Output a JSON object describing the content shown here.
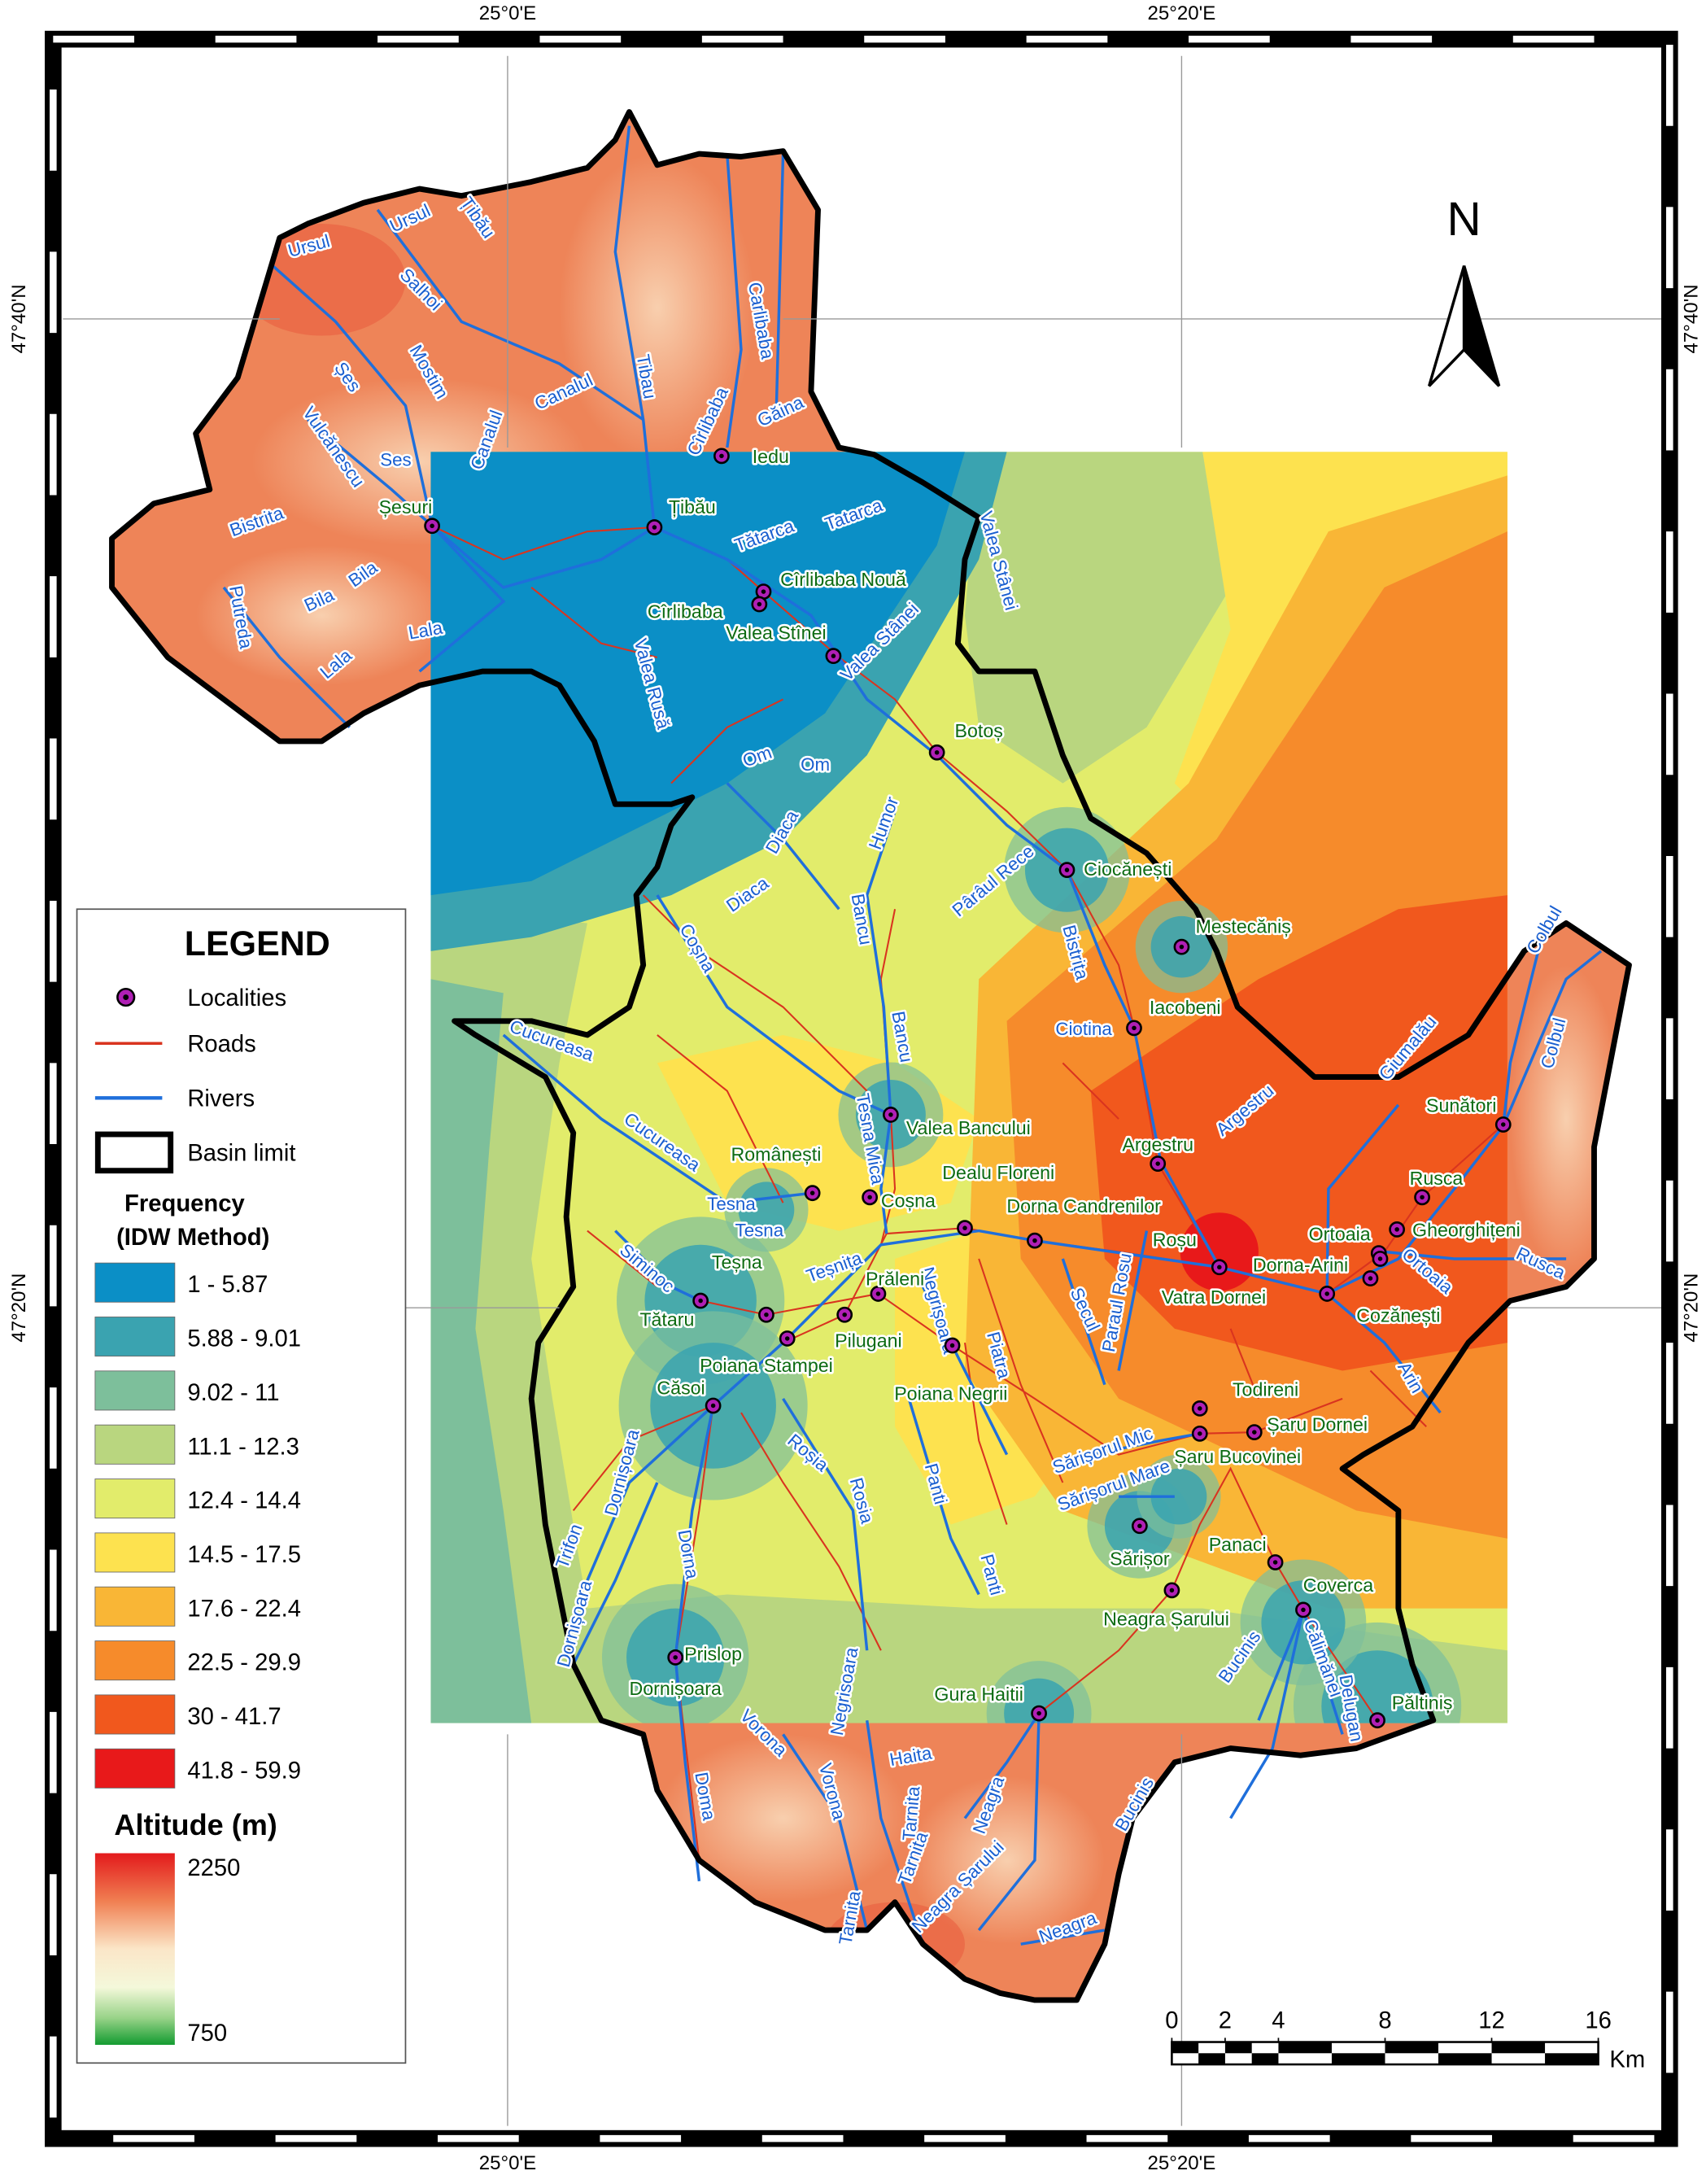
{
  "coordinates": {
    "top": [
      "25°0'E",
      "25°20'E"
    ],
    "bottom": [
      "25°0'E",
      "25°20'E"
    ],
    "left": [
      "47°40'N",
      "47°20'N"
    ],
    "right": [
      "47°40'N",
      "47°20'N"
    ]
  },
  "north": "N",
  "legend": {
    "title": "LEGEND",
    "items": [
      "Localities",
      "Roads",
      "Rivers",
      "Basin limit"
    ],
    "frequency_title": [
      "Frequency",
      "(IDW Method)"
    ],
    "frequency_classes": [
      {
        "label": "1 - 5.87",
        "color": "#0b8fc6"
      },
      {
        "label": "5.88 - 9.01",
        "color": "#3aa3b0"
      },
      {
        "label": "9.02 - 11",
        "color": "#7dbf9b"
      },
      {
        "label": "11.1 - 12.3",
        "color": "#b9d67f"
      },
      {
        "label": "12.4 - 14.4",
        "color": "#e2ec6b"
      },
      {
        "label": "14.5 - 17.5",
        "color": "#fde24f"
      },
      {
        "label": "17.6 - 22.4",
        "color": "#f9b636"
      },
      {
        "label": "22.5 - 29.9",
        "color": "#f68b2b"
      },
      {
        "label": "30 - 41.7",
        "color": "#f1581d"
      },
      {
        "label": "41.8 - 59.9",
        "color": "#e8191a"
      }
    ],
    "altitude_title": "Altitude (m)",
    "altitude_range": [
      2250,
      750
    ]
  },
  "scale_bar": {
    "ticks": [
      0,
      2,
      4,
      8,
      12,
      16
    ],
    "unit": "Km"
  },
  "localities": [
    "Iedu",
    "Șesuri",
    "Țibău",
    "Cîrlibaba Nouă",
    "Cîrlibaba",
    "Valea Stînei",
    "Botoș",
    "Ciocănești",
    "Mestecăniș",
    "Iacobeni",
    "Valea Bancului",
    "Argestru",
    "Sunători",
    "Românești",
    "Coșna",
    "Dealu Floreni",
    "Dorna Candrenilor",
    "Rusca",
    "Gheorghițeni",
    "Ortoaia",
    "Roșu",
    "Dorna-Arini",
    "Vatra Dornei",
    "Cozănești",
    "Teșna",
    "Prăleni",
    "Tătaru",
    "Pilugani",
    "Poiana Stampei",
    "Poiana Negrii",
    "Căsoi",
    "Todireni",
    "Șaru Dornei",
    "Șaru Bucovinei",
    "Sărișor",
    "Panaci",
    "Neagra Șarului",
    "Coverca",
    "Prislop",
    "Dornișoara",
    "Gura Haitii",
    "Păltiniș"
  ],
  "rivers": [
    "Ursul",
    "Ursul",
    "Țibău",
    "Salhoi",
    "Carlibaba",
    "Șes",
    "Mostim",
    "Canalul",
    "Canalul",
    "Tibau",
    "Vulcănescu",
    "Ses",
    "Găina",
    "Cîrlibaba",
    "Bistrita",
    "Bila",
    "Bila",
    "Putreda",
    "Lala",
    "Lala",
    "Tătarca",
    "Tatarca",
    "Valea Stânei",
    "Valea Stânei",
    "Valea Rusă",
    "Om",
    "Om",
    "Diaca",
    "Diaca",
    "Humor",
    "Pârâul Rece",
    "Bistrița",
    "Coșna",
    "Bancu",
    "Bancu",
    "Ciotina",
    "Cucureasa",
    "Cucureasa",
    "Tesna Mica",
    "Tesna",
    "Tesna",
    "Teșnița",
    "Siminoc",
    "Negrișoara",
    "Piatra",
    "Secul",
    "Paraul Rosu",
    "Argestru",
    "Giumalău",
    "Colbul",
    "Colbul",
    "Rusca",
    "Ortoaia",
    "Arin",
    "Dornișoara",
    "Trifon",
    "Dorna",
    "Dornișoara",
    "Roșia",
    "Rosia",
    "Panti",
    "Panti",
    "Sărișorul Mic",
    "Sărișorul Mare",
    "Bucinis",
    "Călimănel",
    "Delugan",
    "Vorona",
    "Vorona",
    "Doma",
    "Negrisoara",
    "Haita",
    "Tarnita",
    "Tarnita",
    "Neagra",
    "Neagra Șarului",
    "Neagra",
    "Bucinis",
    "Tarnita"
  ]
}
